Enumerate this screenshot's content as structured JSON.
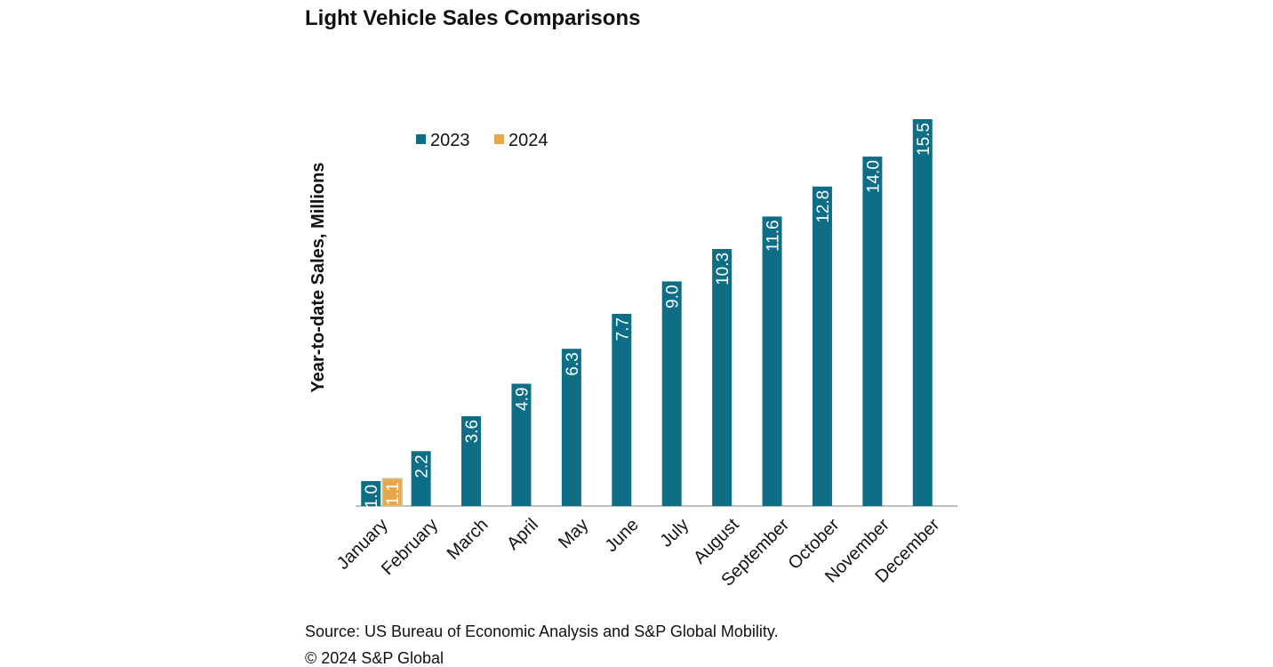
{
  "chart_data": {
    "type": "bar",
    "title": "Light Vehicle Sales Comparisons",
    "y_label": "Year-to-date Sales, Millions",
    "categories": [
      "January",
      "February",
      "March",
      "April",
      "May",
      "June",
      "July",
      "August",
      "September",
      "October",
      "November",
      "December"
    ],
    "series": [
      {
        "name": "2023",
        "color": "#0e6e86",
        "values": [
          1.0,
          2.2,
          3.6,
          4.9,
          6.3,
          7.7,
          9.0,
          10.3,
          11.6,
          12.8,
          14.0,
          15.5
        ],
        "value_labels": [
          "1.0",
          "2.2",
          "3.6",
          "4.9",
          "6.3",
          "7.7",
          "9.0",
          "10.3",
          "11.6",
          "12.8",
          "14.0",
          "15.5"
        ]
      },
      {
        "name": "2024",
        "color": "#e9a74d",
        "values": [
          1.1,
          null,
          null,
          null,
          null,
          null,
          null,
          null,
          null,
          null,
          null,
          null
        ],
        "value_labels": [
          "1.1",
          null,
          null,
          null,
          null,
          null,
          null,
          null,
          null,
          null,
          null,
          null
        ]
      }
    ],
    "grid": false,
    "legend": "top-left",
    "source": "Source: US Bureau of Economic Analysis and S&P Global Mobility.",
    "copyright": "© 2024 S&P Global"
  }
}
